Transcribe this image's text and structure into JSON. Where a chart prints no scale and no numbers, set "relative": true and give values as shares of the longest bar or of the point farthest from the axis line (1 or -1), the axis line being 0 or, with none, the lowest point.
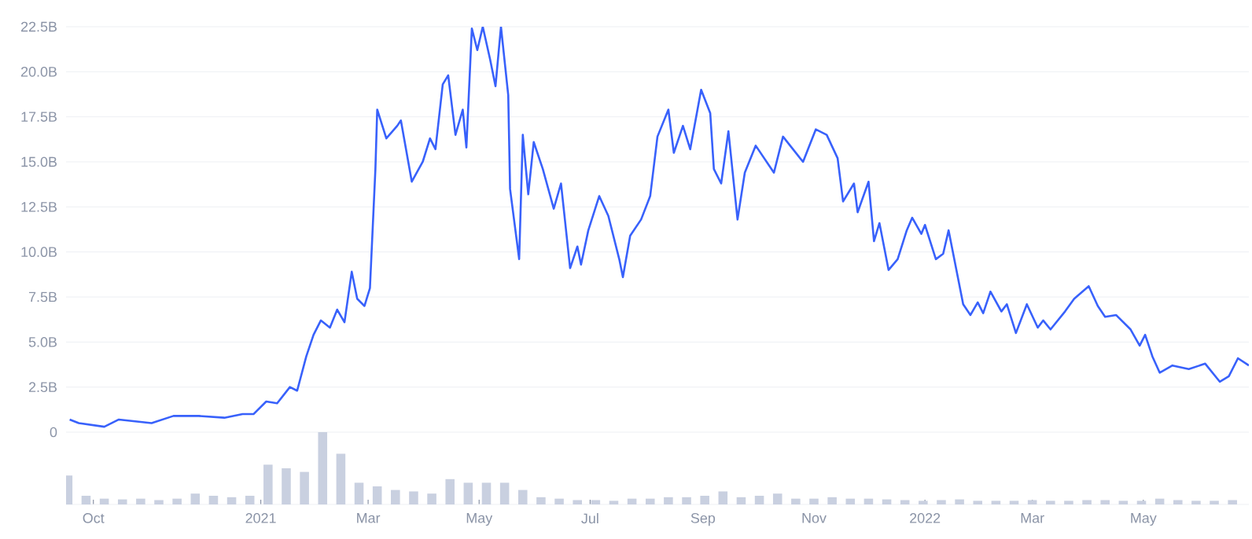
{
  "chart_data": [
    {
      "type": "line",
      "grid": "y",
      "tick_labels": "y",
      "xlim": [
        "2020-09-16",
        "2022-06-28"
      ],
      "ylim": [
        0,
        22.5
      ],
      "yticks": [
        0,
        {
          "value": 2.5,
          "label": "2.5B"
        },
        {
          "value": 5,
          "label": "5.0B"
        },
        {
          "value": 7.5,
          "label": "7.5B"
        },
        {
          "value": 10,
          "label": "10.0B"
        },
        {
          "value": 12.5,
          "label": "12.5B"
        },
        {
          "value": 15,
          "label": "15.0B"
        },
        {
          "value": 17.5,
          "label": "17.5B"
        },
        {
          "value": 20,
          "label": "20.0B"
        },
        {
          "value": 22.5,
          "label": "22.5B"
        }
      ],
      "series": [
        {
          "color": "#3861fb",
          "x": [
            "2020-09-18",
            "2020-09-23",
            "2020-10-07",
            "2020-10-15",
            "2020-11-02",
            "2020-11-14",
            "2020-11-28",
            "2020-12-12",
            "2020-12-22",
            "2020-12-28",
            "2021-01-04",
            "2021-01-10",
            "2021-01-17",
            "2021-01-21",
            "2021-01-26",
            "2021-01-30",
            "2021-02-03",
            "2021-02-08",
            "2021-02-12",
            "2021-02-16",
            "2021-02-20",
            "2021-02-23",
            "2021-02-27",
            "2021-03-02",
            "2021-03-05",
            "2021-03-06",
            "2021-03-11",
            "2021-03-17",
            "2021-03-19",
            "2021-03-25",
            "2021-03-31",
            "2021-04-04",
            "2021-04-07",
            "2021-04-11",
            "2021-04-14",
            "2021-04-18",
            "2021-04-22",
            "2021-04-24",
            "2021-04-27",
            "2021-04-30",
            "2021-05-03",
            "2021-05-07",
            "2021-05-10",
            "2021-05-13",
            "2021-05-17",
            "2021-05-18",
            "2021-05-23",
            "2021-05-25",
            "2021-05-28",
            "2021-05-31",
            "2021-06-05",
            "2021-06-11",
            "2021-06-15",
            "2021-06-20",
            "2021-06-24",
            "2021-06-26",
            "2021-06-30",
            "2021-07-06",
            "2021-07-11",
            "2021-07-17",
            "2021-07-19",
            "2021-07-23",
            "2021-07-29",
            "2021-08-03",
            "2021-08-07",
            "2021-08-13",
            "2021-08-16",
            "2021-08-21",
            "2021-08-25",
            "2021-08-31",
            "2021-09-05",
            "2021-09-07",
            "2021-09-11",
            "2021-09-15",
            "2021-09-20",
            "2021-09-24",
            "2021-09-30",
            "2021-10-10",
            "2021-10-15",
            "2021-10-26",
            "2021-11-02",
            "2021-11-08",
            "2021-11-14",
            "2021-11-17",
            "2021-11-23",
            "2021-11-25",
            "2021-12-01",
            "2021-12-04",
            "2021-12-07",
            "2021-12-12",
            "2021-12-17",
            "2021-12-22",
            "2021-12-25",
            "2021-12-30",
            "2022-01-01",
            "2022-01-07",
            "2022-01-11",
            "2022-01-14",
            "2022-01-22",
            "2022-01-26",
            "2022-01-30",
            "2022-02-02",
            "2022-02-06",
            "2022-02-12",
            "2022-02-15",
            "2022-02-20",
            "2022-02-26",
            "2022-03-04",
            "2022-03-07",
            "2022-03-11",
            "2022-03-19",
            "2022-03-24",
            "2022-04-01",
            "2022-04-06",
            "2022-04-10",
            "2022-04-16",
            "2022-04-24",
            "2022-04-29",
            "2022-05-02",
            "2022-05-06",
            "2022-05-10",
            "2022-05-17",
            "2022-05-26",
            "2022-06-04",
            "2022-06-12",
            "2022-06-17",
            "2022-06-22",
            "2022-06-28"
          ],
          "values": [
            0.7,
            0.5,
            0.3,
            0.7,
            0.5,
            0.9,
            0.9,
            0.8,
            1.0,
            1.0,
            1.7,
            1.6,
            2.5,
            2.3,
            4.2,
            5.4,
            6.2,
            5.8,
            6.8,
            6.1,
            8.9,
            7.4,
            7.0,
            8.0,
            14.6,
            17.9,
            16.3,
            17.0,
            17.3,
            13.9,
            15.0,
            16.3,
            15.7,
            19.3,
            19.8,
            16.5,
            17.9,
            15.8,
            22.4,
            21.2,
            22.5,
            20.7,
            19.2,
            22.5,
            18.7,
            13.5,
            9.6,
            16.5,
            13.2,
            16.1,
            14.6,
            12.4,
            13.8,
            9.1,
            10.3,
            9.3,
            11.2,
            13.1,
            12.0,
            9.6,
            8.6,
            10.9,
            11.8,
            13.1,
            16.4,
            17.9,
            15.5,
            17.0,
            15.7,
            19.0,
            17.7,
            14.6,
            13.8,
            16.7,
            11.8,
            14.4,
            15.9,
            14.4,
            16.4,
            15.0,
            16.8,
            16.5,
            15.2,
            12.8,
            13.8,
            12.2,
            13.9,
            10.6,
            11.6,
            9.0,
            9.6,
            11.2,
            11.9,
            11.0,
            11.5,
            9.6,
            9.9,
            11.2,
            7.1,
            6.5,
            7.2,
            6.6,
            7.8,
            6.7,
            7.1,
            5.5,
            7.1,
            5.8,
            6.2,
            5.7,
            6.7,
            7.4,
            8.1,
            7.0,
            6.4,
            6.5,
            5.7,
            4.8,
            5.4,
            4.2,
            3.3,
            3.7,
            3.5,
            3.8,
            2.8,
            3.1,
            4.1,
            3.7
          ]
        }
      ]
    },
    {
      "type": "bar",
      "relative": true,
      "tick_labels": "x",
      "color": "#c9d0e0",
      "xlim": [
        "2020-09-16",
        "2022-06-28"
      ],
      "xticks": [
        {
          "value": "2020-10-01",
          "label": "Oct"
        },
        {
          "value": "2021-01-01",
          "label": "2021"
        },
        {
          "value": "2021-03-01",
          "label": "Mar"
        },
        {
          "value": "2021-05-01",
          "label": "May"
        },
        {
          "value": "2021-07-01",
          "label": "Jul"
        },
        {
          "value": "2021-09-01",
          "label": "Sep"
        },
        {
          "value": "2021-11-01",
          "label": "Nov"
        },
        {
          "value": "2022-01-01",
          "label": "2022"
        },
        {
          "value": "2022-03-01",
          "label": "Mar"
        },
        {
          "value": "2022-05-01",
          "label": "May"
        }
      ],
      "x": [
        "2020-09-17",
        "2020-09-27",
        "2020-10-07",
        "2020-10-17",
        "2020-10-27",
        "2020-11-06",
        "2020-11-16",
        "2020-11-26",
        "2020-12-06",
        "2020-12-16",
        "2020-12-26",
        "2021-01-05",
        "2021-01-15",
        "2021-01-25",
        "2021-02-04",
        "2021-02-14",
        "2021-02-24",
        "2021-03-06",
        "2021-03-16",
        "2021-03-26",
        "2021-04-05",
        "2021-04-15",
        "2021-04-25",
        "2021-05-05",
        "2021-05-15",
        "2021-05-25",
        "2021-06-04",
        "2021-06-14",
        "2021-06-24",
        "2021-07-04",
        "2021-07-14",
        "2021-07-24",
        "2021-08-03",
        "2021-08-13",
        "2021-08-23",
        "2021-09-02",
        "2021-09-12",
        "2021-09-22",
        "2021-10-02",
        "2021-10-12",
        "2021-10-22",
        "2021-11-01",
        "2021-11-11",
        "2021-11-21",
        "2021-12-01",
        "2021-12-11",
        "2021-12-21",
        "2021-12-31",
        "2022-01-10",
        "2022-01-20",
        "2022-01-30",
        "2022-02-09",
        "2022-02-19",
        "2022-03-01",
        "2022-03-11",
        "2022-03-21",
        "2022-03-31",
        "2022-04-10",
        "2022-04-20",
        "2022-04-30",
        "2022-05-10",
        "2022-05-20",
        "2022-05-30",
        "2022-06-09",
        "2022-06-19"
      ],
      "values": [
        0.4,
        0.12,
        0.08,
        0.07,
        0.08,
        0.06,
        0.08,
        0.15,
        0.12,
        0.1,
        0.12,
        0.55,
        0.5,
        0.45,
        1.0,
        0.7,
        0.3,
        0.25,
        0.2,
        0.18,
        0.15,
        0.35,
        0.3,
        0.3,
        0.3,
        0.2,
        0.1,
        0.08,
        0.06,
        0.06,
        0.05,
        0.08,
        0.08,
        0.1,
        0.1,
        0.12,
        0.18,
        0.1,
        0.12,
        0.15,
        0.08,
        0.08,
        0.1,
        0.08,
        0.08,
        0.07,
        0.06,
        0.05,
        0.06,
        0.07,
        0.05,
        0.05,
        0.05,
        0.06,
        0.05,
        0.05,
        0.06,
        0.06,
        0.05,
        0.05,
        0.08,
        0.06,
        0.05,
        0.05,
        0.06
      ]
    }
  ]
}
